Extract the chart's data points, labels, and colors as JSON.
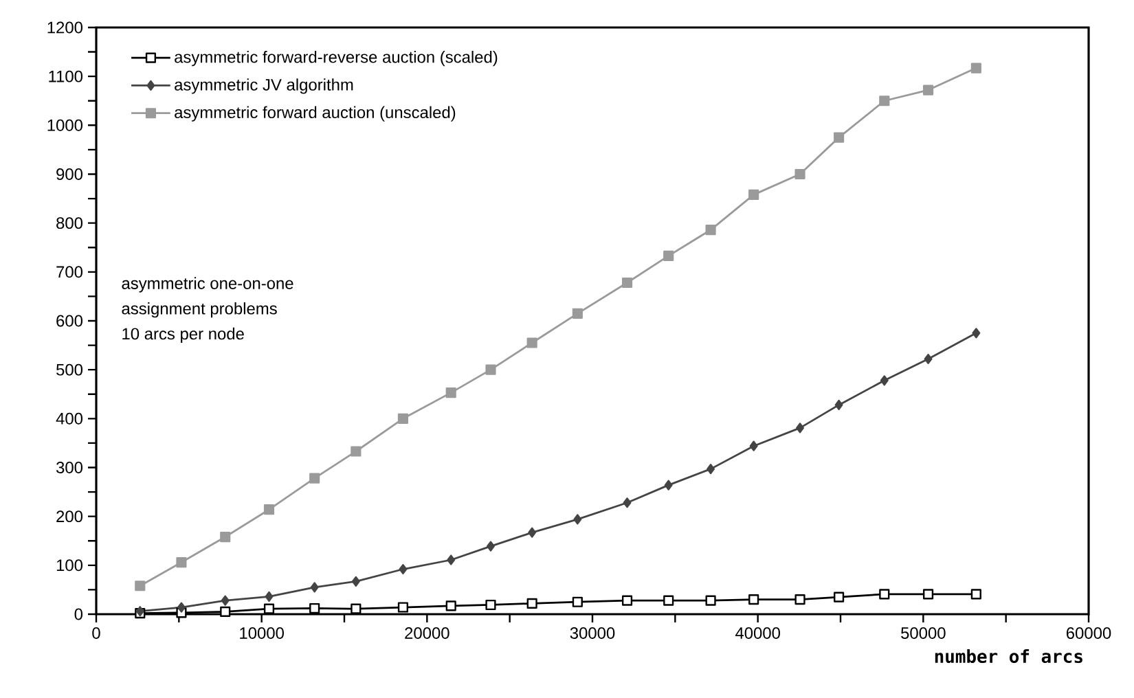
{
  "chart_data": {
    "type": "line",
    "xlabel": "number of arcs",
    "x": [
      2650,
      5150,
      7800,
      10450,
      13200,
      15700,
      18550,
      21450,
      23850,
      26350,
      29100,
      32100,
      34600,
      37150,
      39750,
      42550,
      44900,
      47650,
      50300,
      53200
    ],
    "series": [
      {
        "name": "asymmetric forward-reverse auction (scaled)",
        "color": "#000000",
        "marker": "square",
        "values": [
          2,
          3,
          5,
          11,
          12,
          11,
          14,
          17,
          19,
          22,
          25,
          28,
          28,
          28,
          30,
          30,
          35,
          41,
          41,
          41
        ]
      },
      {
        "name": "asymmetric JV algorithm",
        "color": "#444444",
        "marker": "diamond",
        "values": [
          6,
          14,
          28,
          36,
          55,
          67,
          92,
          111,
          139,
          167,
          194,
          228,
          264,
          297,
          344,
          381,
          428,
          478,
          522,
          575
        ]
      },
      {
        "name": "asymmetric forward auction (unscaled)",
        "color": "#9a9a9a",
        "marker": "square",
        "values": [
          58,
          106,
          158,
          214,
          278,
          333,
          400,
          453,
          500,
          555,
          615,
          678,
          733,
          786,
          858,
          900,
          975,
          1050,
          1072,
          1117
        ]
      }
    ],
    "xlim": [
      0,
      60000
    ],
    "ylim": [
      0,
      1200
    ],
    "xticks": [
      0,
      {
        "value": 5000,
        "label": null
      },
      10000,
      {
        "value": 15000,
        "label": null
      },
      20000,
      {
        "value": 25000,
        "label": null
      },
      30000,
      {
        "value": 35000,
        "label": null
      },
      40000,
      {
        "value": 45000,
        "label": null
      },
      50000,
      {
        "value": 55000,
        "label": null
      },
      60000
    ],
    "yticks": [
      0,
      {
        "value": 50,
        "label": null
      },
      100,
      {
        "value": 150,
        "label": null
      },
      200,
      {
        "value": 250,
        "label": null
      },
      300,
      {
        "value": 350,
        "label": null
      },
      400,
      {
        "value": 450,
        "label": null
      },
      500,
      {
        "value": 550,
        "label": null
      },
      600,
      {
        "value": 650,
        "label": null
      },
      700,
      {
        "value": 750,
        "label": null
      },
      800,
      {
        "value": 850,
        "label": null
      },
      900,
      {
        "value": 950,
        "label": null
      },
      1000,
      {
        "value": 1050,
        "label": null
      },
      1100,
      {
        "value": 1150,
        "label": null
      },
      1200
    ],
    "annotations": [
      "asymmetric one-on-one",
      "assignment problems",
      "10 arcs per node"
    ],
    "legend": "top left",
    "grid": false,
    "line_style": "solid"
  }
}
